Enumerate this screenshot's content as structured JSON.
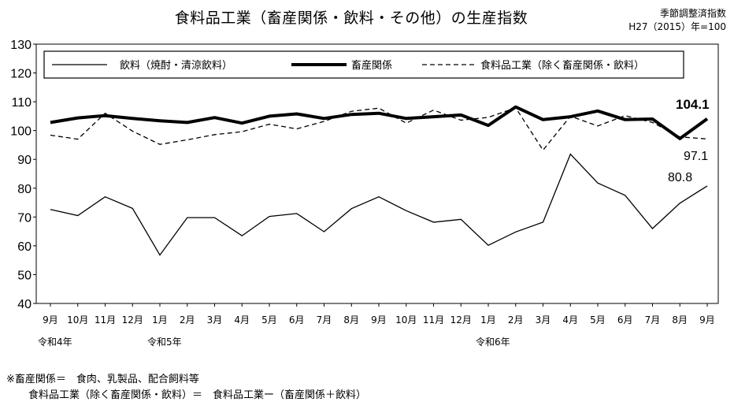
{
  "title": "食料品工業（畜産関係・飲料・その他）の生産指数",
  "subtitle_line1": "季節調整済指数",
  "subtitle_line2": "H27（2015）年=100",
  "chart_data": {
    "type": "line",
    "title": "食料品工業（畜産関係・飲料・その他）の生産指数",
    "ylim": [
      40,
      130
    ],
    "yticks": [
      40,
      50,
      60,
      70,
      80,
      90,
      100,
      110,
      120,
      130
    ],
    "categories": [
      "9月",
      "10月",
      "11月",
      "12月",
      "1月",
      "2月",
      "3月",
      "4月",
      "5月",
      "6月",
      "7月",
      "8月",
      "9月",
      "10月",
      "11月",
      "12月",
      "1月",
      "2月",
      "3月",
      "4月",
      "5月",
      "6月",
      "7月",
      "8月",
      "9月"
    ],
    "era_labels": [
      {
        "index": 0,
        "label": "令和4年"
      },
      {
        "index": 4,
        "label": "令和5年"
      },
      {
        "index": 16,
        "label": "令和6年"
      }
    ],
    "series": [
      {
        "name": "飲料（焼酎・清涼飲料）",
        "style": "thin",
        "values": [
          72.6,
          70.5,
          77.0,
          73.0,
          56.8,
          69.8,
          69.8,
          63.5,
          70.2,
          71.2,
          64.9,
          72.9,
          77.0,
          72.2,
          68.2,
          69.2,
          60.2,
          64.8,
          68.2,
          91.8,
          81.8,
          77.5,
          66.0,
          74.8,
          80.8
        ]
      },
      {
        "name": "畜産関係",
        "style": "thick",
        "values": [
          102.8,
          104.4,
          105.2,
          104.2,
          103.4,
          102.8,
          104.5,
          102.6,
          105.0,
          105.8,
          104.2,
          105.6,
          106.0,
          104.2,
          104.8,
          105.4,
          101.8,
          108.2,
          103.8,
          104.8,
          106.8,
          103.8,
          104.0,
          97.2,
          104.1
        ]
      },
      {
        "name": "食料品工業（除く畜産関係・飲料）",
        "style": "dashed",
        "values": [
          98.4,
          97.0,
          106.0,
          99.8,
          95.2,
          96.8,
          98.6,
          99.6,
          102.2,
          100.6,
          103.2,
          106.7,
          107.8,
          102.6,
          107.1,
          103.6,
          104.6,
          107.9,
          93.2,
          105.0,
          101.6,
          105.2,
          102.8,
          97.8,
          97.1
        ]
      }
    ],
    "data_labels": [
      "104.1",
      "97.1",
      "80.8"
    ],
    "legend_position": "top"
  },
  "notes": {
    "line1": "※畜産関係＝　食肉、乳製品、配合飼料等",
    "line2": "食料品工業（除く畜産関係・飲料）＝　食料品工業ー（畜産関係＋飲料）"
  }
}
